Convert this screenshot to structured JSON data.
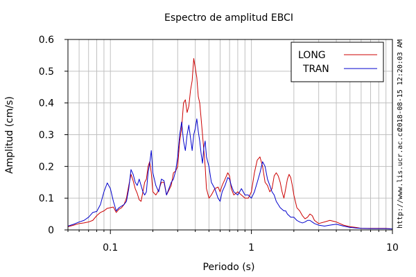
{
  "chart_data": {
    "type": "line",
    "title": "Espectro de amplitud EBCI",
    "xlabel": "Periodo (s)",
    "ylabel": "Amplitud (cm/s)",
    "x_scale": "log",
    "xlim": [
      0.05,
      10
    ],
    "ylim": [
      0,
      0.6
    ],
    "grid": true,
    "legend_position": "top-right",
    "x_ticks": [
      {
        "value": 0.1,
        "label": "0.1"
      },
      {
        "value": 1,
        "label": "1"
      },
      {
        "value": 10,
        "label": "10"
      }
    ],
    "y_ticks": [
      {
        "value": 0,
        "label": "0"
      },
      {
        "value": 0.1,
        "label": "0.1"
      },
      {
        "value": 0.2,
        "label": "0.2"
      },
      {
        "value": 0.3,
        "label": "0.3"
      },
      {
        "value": 0.4,
        "label": "0.4"
      },
      {
        "value": 0.5,
        "label": "0.5"
      },
      {
        "value": 0.6,
        "label": "0.6"
      }
    ],
    "series": [
      {
        "name": "LONG",
        "color": "#cc0000",
        "points": [
          [
            0.05,
            0.01
          ],
          [
            0.055,
            0.015
          ],
          [
            0.06,
            0.02
          ],
          [
            0.065,
            0.022
          ],
          [
            0.07,
            0.025
          ],
          [
            0.075,
            0.03
          ],
          [
            0.08,
            0.045
          ],
          [
            0.085,
            0.055
          ],
          [
            0.09,
            0.06
          ],
          [
            0.095,
            0.068
          ],
          [
            0.1,
            0.07
          ],
          [
            0.105,
            0.072
          ],
          [
            0.11,
            0.055
          ],
          [
            0.115,
            0.065
          ],
          [
            0.12,
            0.07
          ],
          [
            0.125,
            0.08
          ],
          [
            0.13,
            0.1
          ],
          [
            0.135,
            0.14
          ],
          [
            0.14,
            0.175
          ],
          [
            0.145,
            0.155
          ],
          [
            0.15,
            0.13
          ],
          [
            0.155,
            0.115
          ],
          [
            0.16,
            0.095
          ],
          [
            0.165,
            0.09
          ],
          [
            0.17,
            0.12
          ],
          [
            0.175,
            0.15
          ],
          [
            0.18,
            0.16
          ],
          [
            0.185,
            0.2
          ],
          [
            0.19,
            0.215
          ],
          [
            0.195,
            0.18
          ],
          [
            0.2,
            0.12
          ],
          [
            0.21,
            0.11
          ],
          [
            0.22,
            0.125
          ],
          [
            0.23,
            0.15
          ],
          [
            0.24,
            0.15
          ],
          [
            0.25,
            0.11
          ],
          [
            0.26,
            0.125
          ],
          [
            0.27,
            0.14
          ],
          [
            0.28,
            0.18
          ],
          [
            0.29,
            0.185
          ],
          [
            0.3,
            0.2
          ],
          [
            0.31,
            0.28
          ],
          [
            0.32,
            0.32
          ],
          [
            0.33,
            0.4
          ],
          [
            0.34,
            0.41
          ],
          [
            0.35,
            0.37
          ],
          [
            0.36,
            0.39
          ],
          [
            0.37,
            0.44
          ],
          [
            0.38,
            0.47
          ],
          [
            0.39,
            0.54
          ],
          [
            0.4,
            0.51
          ],
          [
            0.41,
            0.48
          ],
          [
            0.42,
            0.42
          ],
          [
            0.43,
            0.4
          ],
          [
            0.44,
            0.35
          ],
          [
            0.45,
            0.3
          ],
          [
            0.46,
            0.25
          ],
          [
            0.47,
            0.2
          ],
          [
            0.48,
            0.13
          ],
          [
            0.5,
            0.1
          ],
          [
            0.52,
            0.11
          ],
          [
            0.55,
            0.13
          ],
          [
            0.58,
            0.135
          ],
          [
            0.6,
            0.12
          ],
          [
            0.62,
            0.14
          ],
          [
            0.65,
            0.16
          ],
          [
            0.68,
            0.18
          ],
          [
            0.7,
            0.17
          ],
          [
            0.72,
            0.13
          ],
          [
            0.75,
            0.11
          ],
          [
            0.8,
            0.12
          ],
          [
            0.85,
            0.11
          ],
          [
            0.9,
            0.1
          ],
          [
            0.95,
            0.1
          ],
          [
            1.0,
            0.12
          ],
          [
            1.05,
            0.18
          ],
          [
            1.1,
            0.22
          ],
          [
            1.15,
            0.23
          ],
          [
            1.2,
            0.2
          ],
          [
            1.25,
            0.15
          ],
          [
            1.3,
            0.14
          ],
          [
            1.35,
            0.12
          ],
          [
            1.4,
            0.13
          ],
          [
            1.45,
            0.17
          ],
          [
            1.5,
            0.18
          ],
          [
            1.55,
            0.17
          ],
          [
            1.6,
            0.15
          ],
          [
            1.65,
            0.12
          ],
          [
            1.7,
            0.1
          ],
          [
            1.75,
            0.13
          ],
          [
            1.8,
            0.16
          ],
          [
            1.85,
            0.175
          ],
          [
            1.9,
            0.165
          ],
          [
            1.95,
            0.14
          ],
          [
            2.0,
            0.11
          ],
          [
            2.1,
            0.07
          ],
          [
            2.2,
            0.06
          ],
          [
            2.3,
            0.045
          ],
          [
            2.4,
            0.035
          ],
          [
            2.5,
            0.04
          ],
          [
            2.6,
            0.05
          ],
          [
            2.7,
            0.045
          ],
          [
            2.8,
            0.03
          ],
          [
            3.0,
            0.02
          ],
          [
            3.3,
            0.025
          ],
          [
            3.6,
            0.03
          ],
          [
            4.0,
            0.025
          ],
          [
            4.5,
            0.015
          ],
          [
            5.0,
            0.01
          ],
          [
            5.5,
            0.008
          ],
          [
            6.0,
            0.005
          ],
          [
            7.0,
            0.005
          ],
          [
            8.0,
            0.005
          ],
          [
            9.0,
            0.005
          ],
          [
            10.0,
            0.003
          ]
        ]
      },
      {
        "name": "TRAN",
        "color": "#0000cc",
        "points": [
          [
            0.05,
            0.012
          ],
          [
            0.055,
            0.018
          ],
          [
            0.06,
            0.025
          ],
          [
            0.065,
            0.03
          ],
          [
            0.07,
            0.04
          ],
          [
            0.075,
            0.055
          ],
          [
            0.08,
            0.058
          ],
          [
            0.085,
            0.08
          ],
          [
            0.09,
            0.12
          ],
          [
            0.095,
            0.148
          ],
          [
            0.1,
            0.13
          ],
          [
            0.105,
            0.09
          ],
          [
            0.11,
            0.06
          ],
          [
            0.115,
            0.07
          ],
          [
            0.12,
            0.075
          ],
          [
            0.125,
            0.08
          ],
          [
            0.13,
            0.09
          ],
          [
            0.135,
            0.13
          ],
          [
            0.14,
            0.19
          ],
          [
            0.145,
            0.175
          ],
          [
            0.15,
            0.15
          ],
          [
            0.155,
            0.14
          ],
          [
            0.16,
            0.16
          ],
          [
            0.165,
            0.14
          ],
          [
            0.17,
            0.12
          ],
          [
            0.175,
            0.11
          ],
          [
            0.18,
            0.12
          ],
          [
            0.185,
            0.18
          ],
          [
            0.19,
            0.21
          ],
          [
            0.195,
            0.25
          ],
          [
            0.2,
            0.18
          ],
          [
            0.21,
            0.14
          ],
          [
            0.22,
            0.12
          ],
          [
            0.23,
            0.16
          ],
          [
            0.24,
            0.155
          ],
          [
            0.25,
            0.11
          ],
          [
            0.26,
            0.13
          ],
          [
            0.27,
            0.15
          ],
          [
            0.28,
            0.16
          ],
          [
            0.29,
            0.185
          ],
          [
            0.3,
            0.23
          ],
          [
            0.31,
            0.3
          ],
          [
            0.32,
            0.34
          ],
          [
            0.33,
            0.28
          ],
          [
            0.34,
            0.25
          ],
          [
            0.35,
            0.3
          ],
          [
            0.36,
            0.33
          ],
          [
            0.37,
            0.29
          ],
          [
            0.38,
            0.25
          ],
          [
            0.39,
            0.3
          ],
          [
            0.4,
            0.32
          ],
          [
            0.41,
            0.35
          ],
          [
            0.42,
            0.31
          ],
          [
            0.43,
            0.28
          ],
          [
            0.44,
            0.24
          ],
          [
            0.45,
            0.21
          ],
          [
            0.46,
            0.26
          ],
          [
            0.47,
            0.28
          ],
          [
            0.48,
            0.23
          ],
          [
            0.5,
            0.2
          ],
          [
            0.52,
            0.15
          ],
          [
            0.55,
            0.13
          ],
          [
            0.58,
            0.1
          ],
          [
            0.6,
            0.09
          ],
          [
            0.62,
            0.12
          ],
          [
            0.65,
            0.14
          ],
          [
            0.68,
            0.165
          ],
          [
            0.7,
            0.16
          ],
          [
            0.72,
            0.14
          ],
          [
            0.75,
            0.12
          ],
          [
            0.8,
            0.11
          ],
          [
            0.85,
            0.13
          ],
          [
            0.9,
            0.11
          ],
          [
            0.95,
            0.11
          ],
          [
            1.0,
            0.1
          ],
          [
            1.05,
            0.12
          ],
          [
            1.1,
            0.15
          ],
          [
            1.15,
            0.18
          ],
          [
            1.2,
            0.215
          ],
          [
            1.25,
            0.2
          ],
          [
            1.3,
            0.16
          ],
          [
            1.35,
            0.14
          ],
          [
            1.4,
            0.12
          ],
          [
            1.45,
            0.11
          ],
          [
            1.5,
            0.09
          ],
          [
            1.55,
            0.08
          ],
          [
            1.6,
            0.07
          ],
          [
            1.65,
            0.065
          ],
          [
            1.7,
            0.06
          ],
          [
            1.75,
            0.06
          ],
          [
            1.8,
            0.05
          ],
          [
            1.85,
            0.045
          ],
          [
            1.9,
            0.04
          ],
          [
            1.95,
            0.04
          ],
          [
            2.0,
            0.04
          ],
          [
            2.1,
            0.03
          ],
          [
            2.2,
            0.025
          ],
          [
            2.3,
            0.022
          ],
          [
            2.4,
            0.025
          ],
          [
            2.5,
            0.03
          ],
          [
            2.6,
            0.03
          ],
          [
            2.7,
            0.025
          ],
          [
            2.8,
            0.02
          ],
          [
            3.0,
            0.015
          ],
          [
            3.3,
            0.012
          ],
          [
            3.6,
            0.015
          ],
          [
            4.0,
            0.018
          ],
          [
            4.5,
            0.012
          ],
          [
            5.0,
            0.008
          ],
          [
            5.5,
            0.006
          ],
          [
            6.0,
            0.005
          ],
          [
            7.0,
            0.004
          ],
          [
            8.0,
            0.004
          ],
          [
            9.0,
            0.004
          ],
          [
            10.0,
            0.003
          ]
        ]
      }
    ]
  },
  "side_annotations": {
    "timestamp": "2018-08-15 12:20:03 AM",
    "url": "http://www.lis.ucr.ac.cr"
  }
}
